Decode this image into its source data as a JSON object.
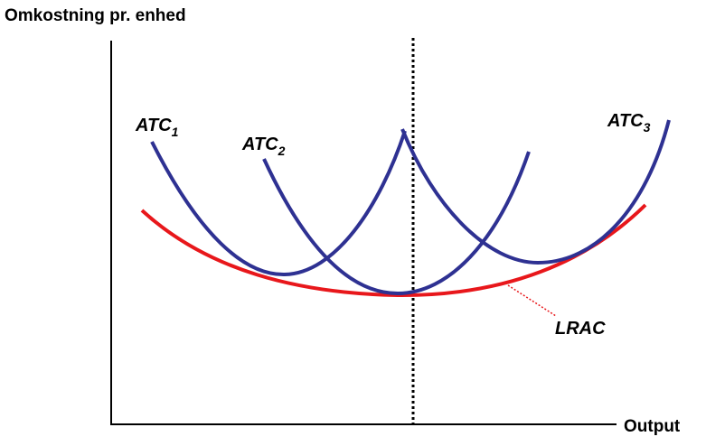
{
  "axes": {
    "y_label": "Omkostning pr. enhed",
    "x_label": "Output"
  },
  "curves": [
    {
      "label": "ATC",
      "subscript": "1"
    },
    {
      "label": "ATC",
      "subscript": "2"
    },
    {
      "label": "ATC",
      "subscript": "3"
    }
  ],
  "envelope": {
    "label": "LRAC"
  }
}
